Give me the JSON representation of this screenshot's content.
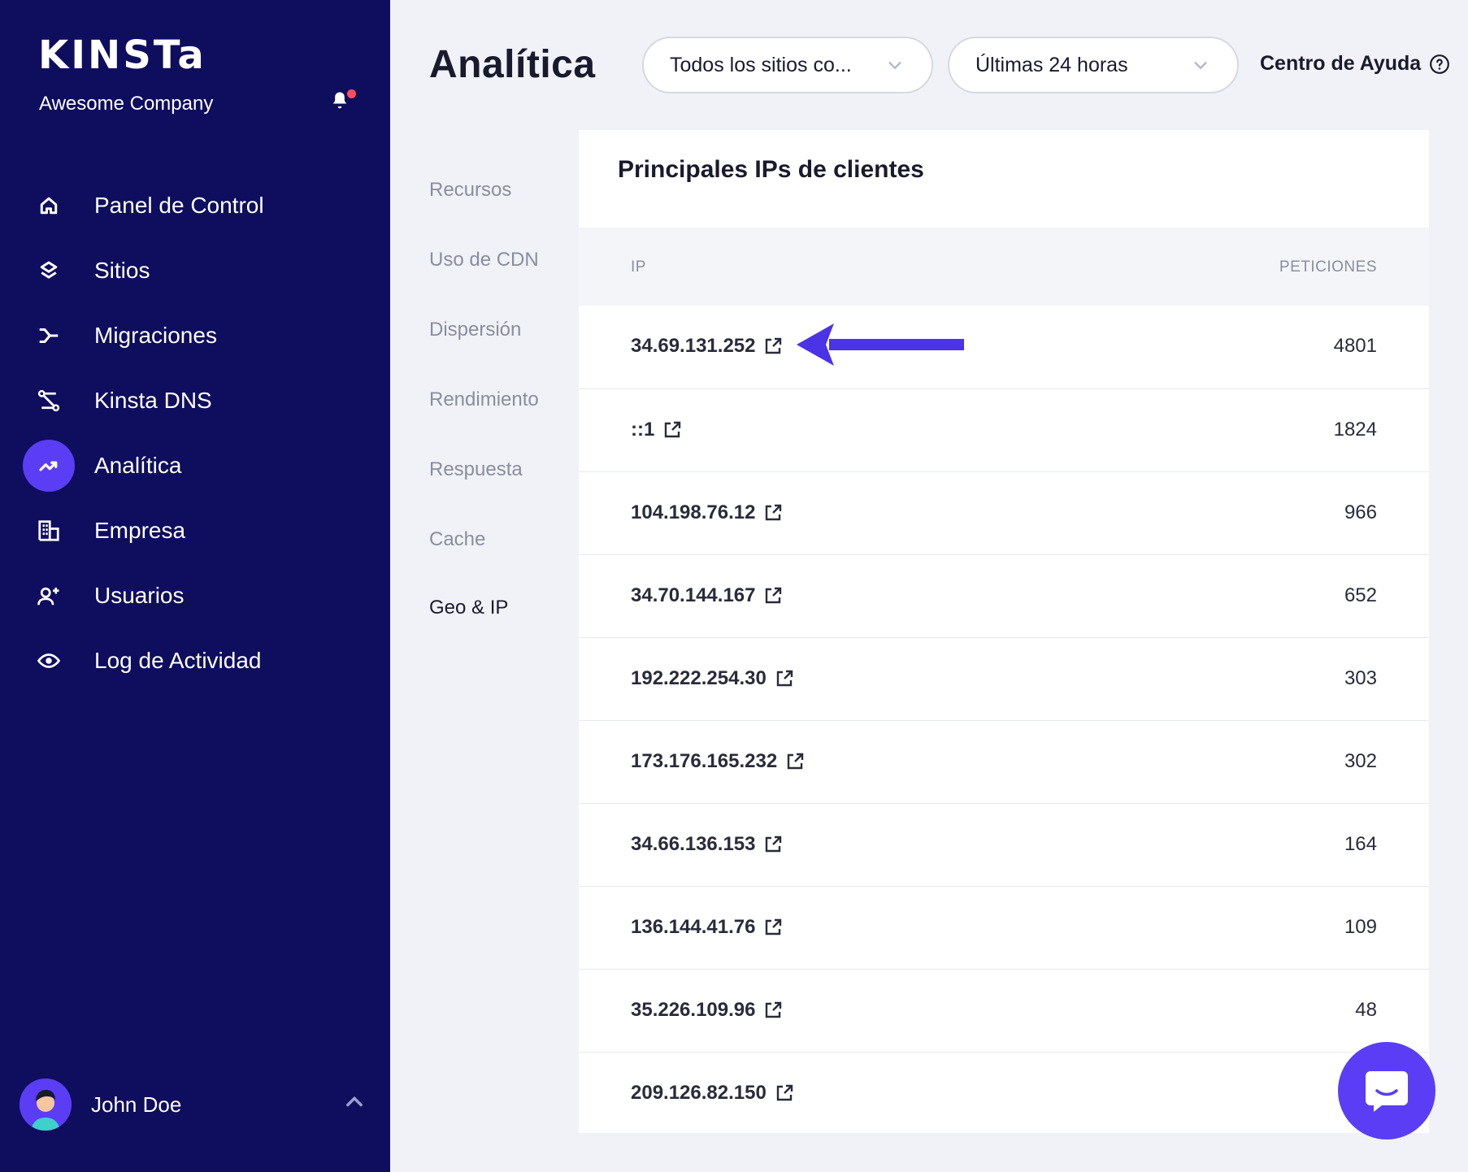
{
  "sidebar": {
    "logo": "KINSTa",
    "company": "Awesome Company",
    "items": [
      {
        "label": "Panel de Control",
        "icon": "home-icon"
      },
      {
        "label": "Sitios",
        "icon": "layers-icon"
      },
      {
        "label": "Migraciones",
        "icon": "migrate-icon"
      },
      {
        "label": "Kinsta DNS",
        "icon": "dns-icon"
      },
      {
        "label": "Analítica",
        "icon": "trending-up-icon",
        "active": true
      },
      {
        "label": "Empresa",
        "icon": "building-icon"
      },
      {
        "label": "Usuarios",
        "icon": "add-user-icon"
      },
      {
        "label": "Log de Actividad",
        "icon": "eye-icon"
      }
    ],
    "user": {
      "name": "John Doe"
    }
  },
  "header": {
    "title": "Analítica",
    "site_filter": "Todos los sitios co...",
    "time_filter": "Últimas 24 horas",
    "help": "Centro de Ayuda"
  },
  "subnav": [
    "Recursos",
    "Uso de CDN",
    "Dispersión",
    "Rendimiento",
    "Respuesta",
    "Cache",
    "Geo & IP"
  ],
  "subnav_active": "Geo & IP",
  "card": {
    "title": "Principales IPs de clientes",
    "columns": [
      "IP",
      "PETICIONES"
    ],
    "rows": [
      {
        "ip": "34.69.131.252",
        "requests": "4801"
      },
      {
        "ip": "::1",
        "requests": "1824"
      },
      {
        "ip": "104.198.76.12",
        "requests": "966"
      },
      {
        "ip": "34.70.144.167",
        "requests": "652"
      },
      {
        "ip": "192.222.254.30",
        "requests": "303"
      },
      {
        "ip": "173.176.165.232",
        "requests": "302"
      },
      {
        "ip": "34.66.136.153",
        "requests": "164"
      },
      {
        "ip": "136.144.41.76",
        "requests": "109"
      },
      {
        "ip": "35.226.109.96",
        "requests": "48"
      },
      {
        "ip": "209.126.82.150",
        "requests": ""
      }
    ]
  },
  "colors": {
    "sidebar": "#0e0d5e",
    "accent": "#5b3df5",
    "background": "#f1f2f7"
  }
}
